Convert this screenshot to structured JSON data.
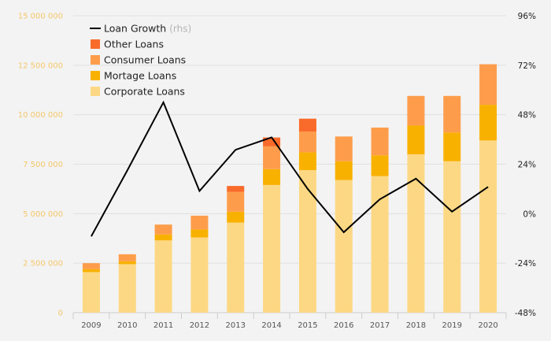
{
  "chart_data": {
    "type": "bar",
    "stacked": true,
    "categories": [
      "2009",
      "2010",
      "2011",
      "2012",
      "2013",
      "2014",
      "2015",
      "2016",
      "2017",
      "2018",
      "2019",
      "2020"
    ],
    "series": [
      {
        "name": "Corporate Loans",
        "color": "#fdd884",
        "values": [
          2050000,
          2450000,
          3650000,
          3800000,
          4550000,
          6450000,
          7200000,
          6700000,
          6900000,
          8000000,
          7650000,
          8700000
        ]
      },
      {
        "name": "Mortage Loans",
        "color": "#f9b100",
        "values": [
          150000,
          150000,
          300000,
          400000,
          550000,
          800000,
          900000,
          950000,
          1050000,
          1450000,
          1450000,
          1800000
        ]
      },
      {
        "name": "Consumer Loans",
        "color": "#fd9d4b",
        "values": [
          300000,
          350000,
          500000,
          700000,
          1000000,
          1150000,
          1050000,
          1250000,
          1400000,
          1500000,
          1850000,
          2050000
        ]
      },
      {
        "name": "Other Loans",
        "color": "#f96b2b",
        "values": [
          0,
          0,
          0,
          0,
          300000,
          450000,
          650000,
          0,
          0,
          0,
          0,
          0
        ]
      }
    ],
    "line_series": {
      "name": "Loan Growth",
      "note": "(rhs)",
      "color": "#000000",
      "axis": "right",
      "values": [
        -0.11,
        0.21,
        0.54,
        0.11,
        0.31,
        0.37,
        0.12,
        -0.09,
        0.07,
        0.17,
        0.01,
        0.13
      ]
    },
    "left_axis": {
      "ylim": [
        0,
        15000000
      ],
      "ticks": [
        0,
        2500000,
        5000000,
        7500000,
        10000000,
        12500000,
        15000000
      ],
      "tick_labels": [
        "0",
        "2 500 000",
        "5 000 000",
        "7 500 000",
        "10 000 000",
        "12 500 000",
        "15 000 000"
      ]
    },
    "right_axis": {
      "ylim": [
        -0.48,
        0.96
      ],
      "ticks": [
        -0.48,
        -0.24,
        0,
        0.24,
        0.48,
        0.72,
        0.96
      ],
      "tick_labels": [
        "-48%",
        "-24%",
        "0%",
        "24%",
        "48%",
        "72%",
        "96%"
      ]
    },
    "legend": {
      "position": "top-left",
      "items": [
        {
          "label": "Loan Growth",
          "note": "(rhs)",
          "kind": "line",
          "color": "#000000"
        },
        {
          "label": "Other Loans",
          "kind": "box",
          "color": "#f96b2b"
        },
        {
          "label": "Consumer Loans",
          "kind": "box",
          "color": "#fd9d4b"
        },
        {
          "label": "Mortage Loans",
          "kind": "box",
          "color": "#f9b100"
        },
        {
          "label": "Corporate Loans",
          "kind": "box",
          "color": "#fdd884"
        }
      ]
    },
    "grid": true,
    "colors": {
      "background": "#f3f3f3",
      "grid": "#e0e0e0",
      "axis": "#cccccc",
      "left_tick": "#f5c76a"
    }
  }
}
